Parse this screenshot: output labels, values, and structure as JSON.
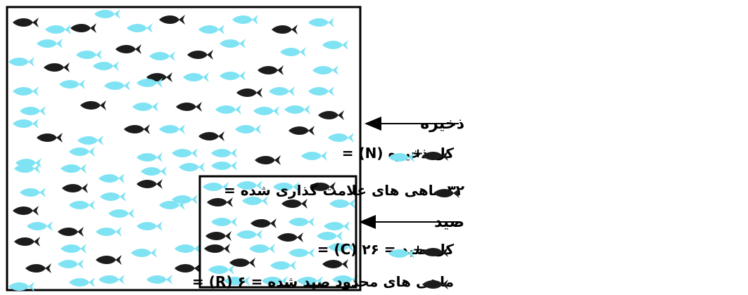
{
  "colors": {
    "marked": "#1c1c1c",
    "unmarked": "#7fe3f3",
    "stroke": "#000000"
  },
  "icons": {
    "marked_fish": "marked-fish-icon",
    "unmarked_fish": "unmarked-fish-icon"
  },
  "labels": {
    "stock": "ذخیره",
    "catch": "صید",
    "stock_total_text": "کل ذخیره (N) =",
    "marked_count_text": "۳۲ ماهی های علامت گذاری شده =",
    "catch_total_text": "کل صید = ۲۶ (C) =",
    "recaptured_text": "ماهی های محدود صید شده = ۶ (R) =",
    "plus": "+"
  }
}
